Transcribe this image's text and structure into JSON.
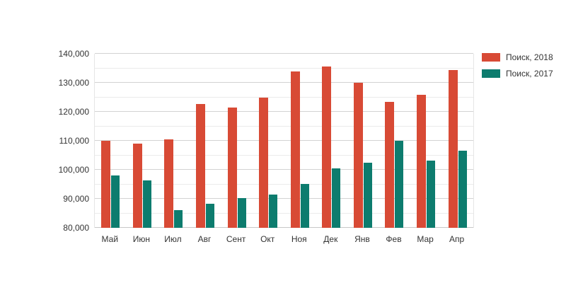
{
  "chart_data": {
    "type": "bar",
    "title": "",
    "xlabel": "",
    "ylabel": "",
    "categories": [
      "Май",
      "Июн",
      "Июл",
      "Авг",
      "Сент",
      "Окт",
      "Ноя",
      "Дек",
      "Янв",
      "Фев",
      "Мар",
      "Апр"
    ],
    "series": [
      {
        "name": "Поиск, 2018",
        "color": "#d84a35",
        "values": [
          110000,
          109000,
          110400,
          122600,
          121500,
          124800,
          133900,
          135500,
          130000,
          123500,
          125800,
          134300
        ]
      },
      {
        "name": "Поиск, 2017",
        "color": "#0d7c6e",
        "values": [
          98100,
          96300,
          86000,
          88400,
          90300,
          91500,
          95100,
          100400,
          102400,
          109900,
          103200,
          106700
        ]
      }
    ],
    "ylim": [
      80000,
      140000
    ],
    "ytick_step": 10000,
    "minor_tick_step": 5000,
    "ytick_labels": [
      "80,000",
      "90,000",
      "100,000",
      "110,000",
      "120,000",
      "130,000",
      "140,000"
    ],
    "grid": true,
    "legend_position": "top-right"
  },
  "colors": {
    "series_2018": "#d84a35",
    "series_2017": "#0d7c6e",
    "grid_major": "#d3d3d3",
    "grid_minor": "#ebebeb",
    "axis_line": "#c8c8c8",
    "text": "#333333",
    "background": "#ffffff"
  }
}
